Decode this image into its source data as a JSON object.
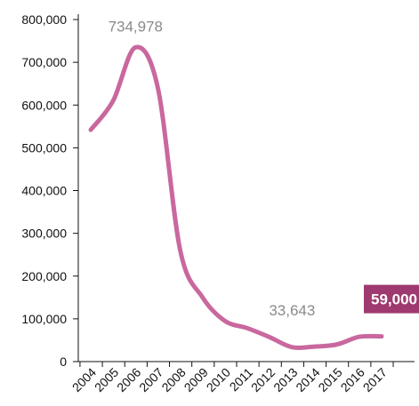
{
  "chart_data": {
    "type": "line",
    "title": "",
    "xlabel": "",
    "ylabel": "",
    "x": [
      "2004",
      "2005",
      "2006",
      "2007",
      "2008",
      "2009",
      "2010",
      "2011",
      "2012",
      "2013",
      "2014",
      "2015",
      "2016",
      "2017"
    ],
    "series": [
      {
        "values": [
          542000,
          610000,
          734978,
          640000,
          260000,
          150000,
          95000,
          78000,
          57000,
          33643,
          35000,
          40000,
          58000,
          59000
        ],
        "color": "#c9689e"
      }
    ],
    "ylim": [
      0,
      800000
    ],
    "yticks": [
      0,
      100000,
      200000,
      300000,
      400000,
      500000,
      600000,
      700000,
      800000
    ],
    "ytick_labels": [
      "0",
      "100,000",
      "200,000",
      "300,000",
      "400,000",
      "500,000",
      "600,000",
      "700,000",
      "800,000"
    ],
    "grid": false,
    "annotations": [
      {
        "text": "734,978",
        "x": "2006",
        "y": 734978,
        "style": "plain"
      },
      {
        "text": "33,643",
        "x": "2013",
        "y": 33643,
        "style": "plain"
      },
      {
        "text": "59,000",
        "x": "2017",
        "y": 59000,
        "style": "badge",
        "badge_color": "#9e3a6f"
      }
    ],
    "axis_color": "#111111"
  }
}
